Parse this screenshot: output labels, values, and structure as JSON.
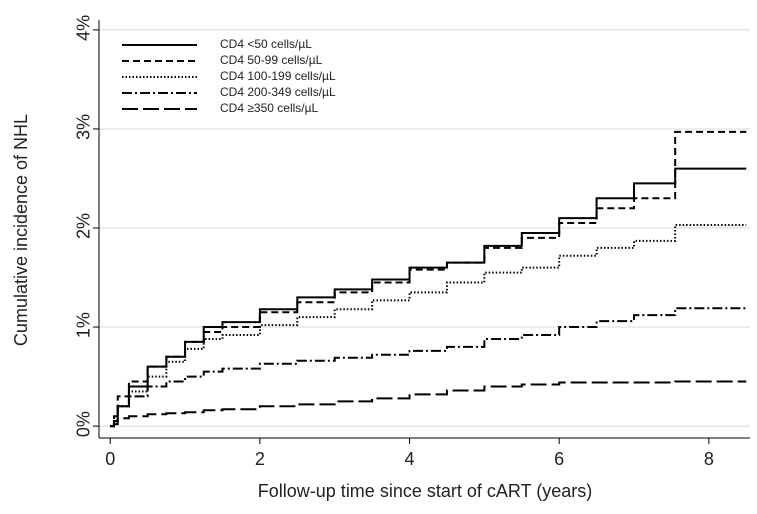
{
  "chart_data": {
    "type": "step",
    "xlabel": "Follow-up time since start of cART (years)",
    "ylabel": "Cumulative incidence of NHL",
    "x": [
      0,
      0.05,
      0.1,
      0.25,
      0.5,
      0.75,
      1,
      1.25,
      1.5,
      2,
      2.5,
      3,
      3.5,
      4,
      4.5,
      5,
      5.5,
      6,
      6.5,
      7,
      7.55,
      8,
      8.5
    ],
    "xlim": [
      -0.15,
      8.55
    ],
    "xticks": [
      0,
      2,
      4,
      6,
      8
    ],
    "ylim": [
      -0.12,
      4.1
    ],
    "yticks": [
      {
        "value": 0,
        "label": "0%"
      },
      {
        "value": 1,
        "label": "1%"
      },
      {
        "value": 2,
        "label": "2%"
      },
      {
        "value": 3,
        "label": "3%"
      },
      {
        "value": 4,
        "label": "4%"
      }
    ],
    "grid": true,
    "legend": "upper left",
    "series": [
      {
        "name": "CD4 <50 cells/µL",
        "color": "#000000",
        "dash": "solid",
        "values": [
          0,
          0.05,
          0.2,
          0.4,
          0.6,
          0.7,
          0.85,
          1.0,
          1.05,
          1.18,
          1.3,
          1.38,
          1.48,
          1.6,
          1.65,
          1.82,
          1.95,
          2.1,
          2.3,
          2.45,
          2.6,
          2.6,
          2.6
        ]
      },
      {
        "name": "CD4 50-99 cells/µL",
        "color": "#000000",
        "dash": "dashed",
        "values": [
          0,
          0.1,
          0.3,
          0.45,
          0.6,
          0.7,
          0.85,
          0.95,
          1.0,
          1.15,
          1.25,
          1.35,
          1.45,
          1.58,
          1.65,
          1.8,
          1.9,
          2.05,
          2.2,
          2.3,
          2.97,
          2.97,
          2.97
        ]
      },
      {
        "name": "CD4 100-199 cells/µL",
        "color": "#000000",
        "dash": "dotted",
        "values": [
          0,
          0.05,
          0.2,
          0.35,
          0.5,
          0.65,
          0.78,
          0.88,
          0.92,
          1.02,
          1.1,
          1.18,
          1.27,
          1.35,
          1.45,
          1.55,
          1.6,
          1.72,
          1.8,
          1.87,
          2.03,
          2.03,
          2.03
        ]
      },
      {
        "name": "CD4 200-349 cells/µL",
        "color": "#000000",
        "dash": "dashdot",
        "values": [
          0,
          0.05,
          0.2,
          0.3,
          0.4,
          0.45,
          0.5,
          0.55,
          0.58,
          0.63,
          0.66,
          0.69,
          0.72,
          0.76,
          0.8,
          0.88,
          0.92,
          1.0,
          1.06,
          1.12,
          1.19,
          1.19,
          1.19
        ]
      },
      {
        "name": "CD4 ≥350 cells/µL",
        "color": "#000000",
        "dash": "longdash",
        "values": [
          0,
          0.02,
          0.08,
          0.1,
          0.12,
          0.13,
          0.14,
          0.16,
          0.17,
          0.2,
          0.22,
          0.25,
          0.28,
          0.32,
          0.36,
          0.4,
          0.42,
          0.44,
          0.44,
          0.44,
          0.45,
          0.45,
          0.45
        ]
      }
    ]
  }
}
